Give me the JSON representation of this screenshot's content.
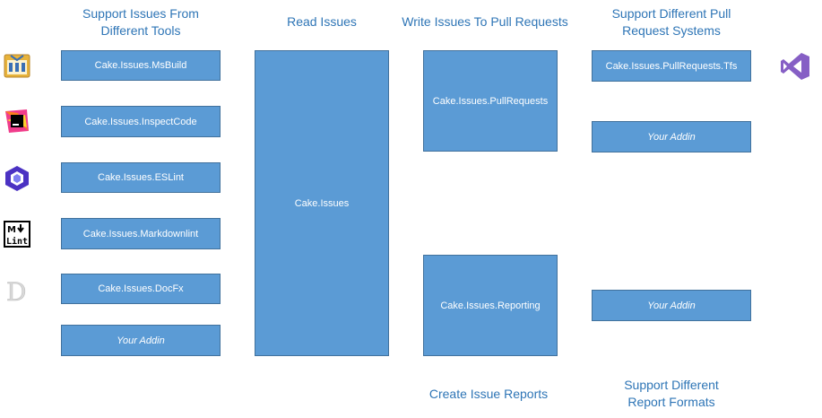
{
  "headers": {
    "tools": "Support Issues From\nDifferent Tools",
    "read": "Read Issues",
    "write": "Write Issues To Pull Requests",
    "pr_systems": "Support Different Pull\nRequest Systems",
    "reports": "Create Issue Reports",
    "report_formats": "Support Different\nReport Formats"
  },
  "tools": [
    {
      "label": "Cake.Issues.MsBuild",
      "icon": "msbuild-icon"
    },
    {
      "label": "Cake.Issues.InspectCode",
      "icon": "jetbrains-icon"
    },
    {
      "label": "Cake.Issues.ESLint",
      "icon": "eslint-icon"
    },
    {
      "label": "Cake.Issues.Markdownlint",
      "icon": "markdownlint-icon"
    },
    {
      "label": "Cake.Issues.DocFx",
      "icon": "docfx-icon"
    },
    {
      "label": "Your Addin"
    }
  ],
  "core": {
    "label": "Cake.Issues"
  },
  "pull_requests": {
    "label": "Cake.Issues.PullRequests"
  },
  "reporting": {
    "label": "Cake.Issues.Reporting"
  },
  "pr_systems": [
    {
      "label": "Cake.Issues.PullRequests.Tfs",
      "icon": "visual-studio-icon"
    },
    {
      "label": "Your Addin"
    }
  ],
  "report_formats": [
    {
      "label": "Your Addin"
    }
  ],
  "colors": {
    "box_fill": "#5b9bd5",
    "box_border": "#41719c",
    "header_text": "#2e75b6"
  }
}
